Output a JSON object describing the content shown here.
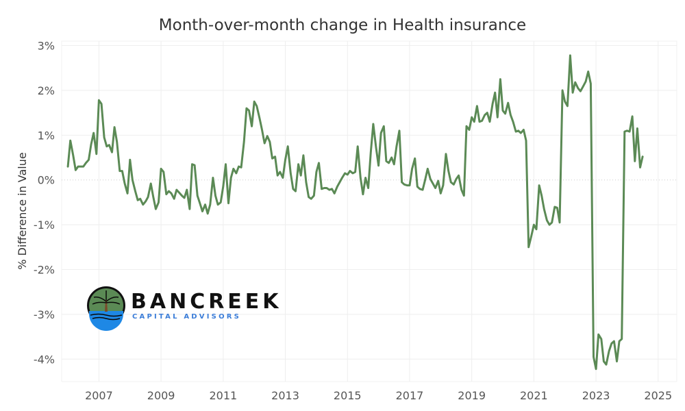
{
  "chart_data": {
    "type": "line",
    "title": "Month-over-month change in Health insurance",
    "ylabel": "% Difference in Value",
    "xlabel": "",
    "xlim": [
      2005.8,
      2025.6
    ],
    "ylim": [
      -4.5,
      3.1
    ],
    "x_ticks": [
      2007,
      2009,
      2011,
      2013,
      2015,
      2017,
      2019,
      2021,
      2023,
      2025
    ],
    "x_tick_labels": [
      "2007",
      "2009",
      "2011",
      "2013",
      "2015",
      "2017",
      "2019",
      "2021",
      "2023",
      "2025"
    ],
    "y_ticks": [
      3,
      2,
      1,
      0,
      -1,
      -2,
      -3,
      -4
    ],
    "y_tick_labels": [
      "3%",
      "2%",
      "1%",
      "0%",
      "-1%",
      "-2%",
      "-3%",
      "-4%"
    ],
    "grid": true,
    "zero_line": true,
    "series_color": "#5b8a55",
    "series": [
      {
        "name": "",
        "x": [
          2006.0,
          2006.08,
          2006.17,
          2006.25,
          2006.33,
          2006.42,
          2006.5,
          2006.58,
          2006.67,
          2006.75,
          2006.83,
          2006.92,
          2007.0,
          2007.08,
          2007.17,
          2007.25,
          2007.33,
          2007.42,
          2007.5,
          2007.58,
          2007.67,
          2007.75,
          2007.83,
          2007.92,
          2008.0,
          2008.08,
          2008.17,
          2008.25,
          2008.33,
          2008.42,
          2008.5,
          2008.58,
          2008.67,
          2008.75,
          2008.83,
          2008.92,
          2009.0,
          2009.08,
          2009.17,
          2009.25,
          2009.33,
          2009.42,
          2009.5,
          2009.58,
          2009.67,
          2009.75,
          2009.83,
          2009.92,
          2010.0,
          2010.08,
          2010.17,
          2010.25,
          2010.33,
          2010.42,
          2010.5,
          2010.58,
          2010.67,
          2010.75,
          2010.83,
          2010.92,
          2011.0,
          2011.08,
          2011.17,
          2011.25,
          2011.33,
          2011.42,
          2011.5,
          2011.58,
          2011.67,
          2011.75,
          2011.83,
          2011.92,
          2012.0,
          2012.08,
          2012.17,
          2012.25,
          2012.33,
          2012.42,
          2012.5,
          2012.58,
          2012.67,
          2012.75,
          2012.83,
          2012.92,
          2013.0,
          2013.08,
          2013.17,
          2013.25,
          2013.33,
          2013.42,
          2013.5,
          2013.58,
          2013.67,
          2013.75,
          2013.83,
          2013.92,
          2014.0,
          2014.08,
          2014.17,
          2014.25,
          2014.33,
          2014.42,
          2014.5,
          2014.58,
          2014.67,
          2014.75,
          2014.83,
          2014.92,
          2015.0,
          2015.08,
          2015.17,
          2015.25,
          2015.33,
          2015.42,
          2015.5,
          2015.58,
          2015.67,
          2015.75,
          2015.83,
          2015.92,
          2016.0,
          2016.08,
          2016.17,
          2016.25,
          2016.33,
          2016.42,
          2016.5,
          2016.58,
          2016.67,
          2016.75,
          2016.83,
          2016.92,
          2017.0,
          2017.08,
          2017.17,
          2017.25,
          2017.33,
          2017.42,
          2017.5,
          2017.58,
          2017.67,
          2017.75,
          2017.83,
          2017.92,
          2018.0,
          2018.08,
          2018.17,
          2018.25,
          2018.33,
          2018.42,
          2018.5,
          2018.58,
          2018.67,
          2018.75,
          2018.83,
          2018.92,
          2019.0,
          2019.08,
          2019.17,
          2019.25,
          2019.33,
          2019.42,
          2019.5,
          2019.58,
          2019.67,
          2019.75,
          2019.83,
          2019.92,
          2020.0,
          2020.08,
          2020.17,
          2020.25,
          2020.33,
          2020.42,
          2020.5,
          2020.58,
          2020.67,
          2020.75,
          2020.83,
          2020.92,
          2021.0,
          2021.08,
          2021.17,
          2021.25,
          2021.33,
          2021.42,
          2021.5,
          2021.58,
          2021.67,
          2021.75,
          2021.83,
          2021.92,
          2022.0,
          2022.08,
          2022.17,
          2022.25,
          2022.33,
          2022.42,
          2022.5,
          2022.58,
          2022.67,
          2022.75,
          2022.83,
          2022.92,
          2023.0,
          2023.08,
          2023.17,
          2023.25,
          2023.33,
          2023.42,
          2023.5,
          2023.58,
          2023.67,
          2023.75,
          2023.83,
          2023.92,
          2024.0,
          2024.08,
          2024.17,
          2024.25,
          2024.33,
          2024.42,
          2024.5
        ],
        "y": [
          0.3,
          0.88,
          0.55,
          0.22,
          0.3,
          0.3,
          0.3,
          0.38,
          0.45,
          0.8,
          1.05,
          0.58,
          1.78,
          1.7,
          0.95,
          0.75,
          0.78,
          0.62,
          1.18,
          0.85,
          0.2,
          0.2,
          -0.08,
          -0.3,
          0.45,
          0.0,
          -0.25,
          -0.45,
          -0.42,
          -0.55,
          -0.48,
          -0.38,
          -0.08,
          -0.38,
          -0.65,
          -0.5,
          0.25,
          0.18,
          -0.32,
          -0.25,
          -0.3,
          -0.42,
          -0.22,
          -0.28,
          -0.35,
          -0.4,
          -0.22,
          -0.65,
          0.35,
          0.33,
          -0.35,
          -0.52,
          -0.7,
          -0.55,
          -0.75,
          -0.55,
          0.05,
          -0.35,
          -0.55,
          -0.5,
          -0.15,
          0.35,
          -0.52,
          0.05,
          0.25,
          0.15,
          0.3,
          0.28,
          0.85,
          1.6,
          1.55,
          1.2,
          1.75,
          1.65,
          1.38,
          1.12,
          0.82,
          0.98,
          0.85,
          0.48,
          0.52,
          0.1,
          0.18,
          0.05,
          0.45,
          0.75,
          0.15,
          -0.2,
          -0.25,
          0.35,
          0.1,
          0.55,
          -0.05,
          -0.38,
          -0.42,
          -0.35,
          0.18,
          0.38,
          -0.2,
          -0.18,
          -0.18,
          -0.22,
          -0.2,
          -0.3,
          -0.15,
          -0.05,
          0.05,
          0.15,
          0.12,
          0.2,
          0.15,
          0.18,
          0.75,
          0.05,
          -0.32,
          0.05,
          -0.18,
          0.62,
          1.25,
          0.72,
          0.32,
          1.05,
          1.2,
          0.42,
          0.38,
          0.5,
          0.35,
          0.75,
          1.1,
          -0.05,
          -0.1,
          -0.12,
          -0.12,
          0.25,
          0.48,
          -0.15,
          -0.2,
          -0.22,
          0.0,
          0.25,
          0.02,
          -0.08,
          -0.18,
          -0.02,
          -0.3,
          -0.12,
          0.58,
          0.2,
          -0.05,
          -0.1,
          0.02,
          0.1,
          -0.22,
          -0.35,
          1.2,
          1.12,
          1.4,
          1.3,
          1.65,
          1.3,
          1.32,
          1.45,
          1.5,
          1.3,
          1.7,
          1.95,
          1.4,
          2.25,
          1.55,
          1.48,
          1.72,
          1.45,
          1.3,
          1.08,
          1.1,
          1.05,
          1.12,
          0.88,
          -1.5,
          -1.25,
          -1.0,
          -1.1,
          -0.12,
          -0.35,
          -0.65,
          -0.9,
          -1.0,
          -0.95,
          -0.6,
          -0.62,
          -0.95,
          2.0,
          1.75,
          1.65,
          2.78,
          1.95,
          2.18,
          2.05,
          1.98,
          2.08,
          2.2,
          2.42,
          2.15,
          -3.95,
          -4.22,
          -3.45,
          -3.55,
          -4.05,
          -4.12,
          -3.82,
          -3.65,
          -3.6,
          -4.05,
          -3.6,
          -3.55,
          1.08,
          1.1,
          1.08,
          1.42,
          0.42,
          1.15,
          0.28,
          0.52
        ]
      }
    ]
  },
  "logo": {
    "name": "BANCREEK",
    "subtitle": "CAPITAL ADVISORS"
  }
}
